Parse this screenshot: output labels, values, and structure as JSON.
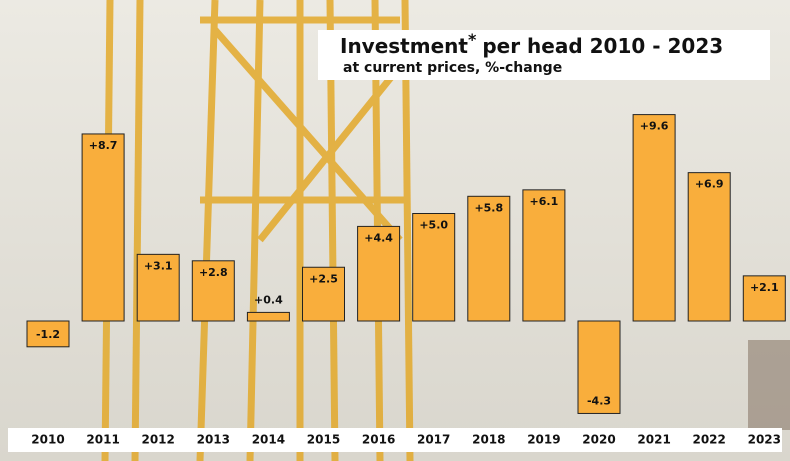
{
  "chart_data": {
    "type": "bar",
    "title_parts": [
      "Investment",
      "*",
      "per head 2010 - 2023"
    ],
    "subtitle": "at current prices, %-change",
    "categories": [
      "2010",
      "2011",
      "2012",
      "2013",
      "2014",
      "2015",
      "2016",
      "2017",
      "2018",
      "2019",
      "2020",
      "2021",
      "2022",
      "2023"
    ],
    "values": [
      -1.2,
      8.7,
      3.1,
      2.8,
      0.4,
      2.5,
      4.4,
      5.0,
      5.8,
      6.1,
      -4.3,
      9.6,
      6.9,
      2.1
    ],
    "value_labels": [
      "-1.2",
      "+8.7",
      "+3.1",
      "+2.8",
      "+0.4",
      "+2.5",
      "+4.4",
      "+5.0",
      "+5.8",
      "+6.1",
      "-4.3",
      "+9.6",
      "+6.9",
      "+2.1"
    ],
    "color": "#f9ae3c"
  }
}
